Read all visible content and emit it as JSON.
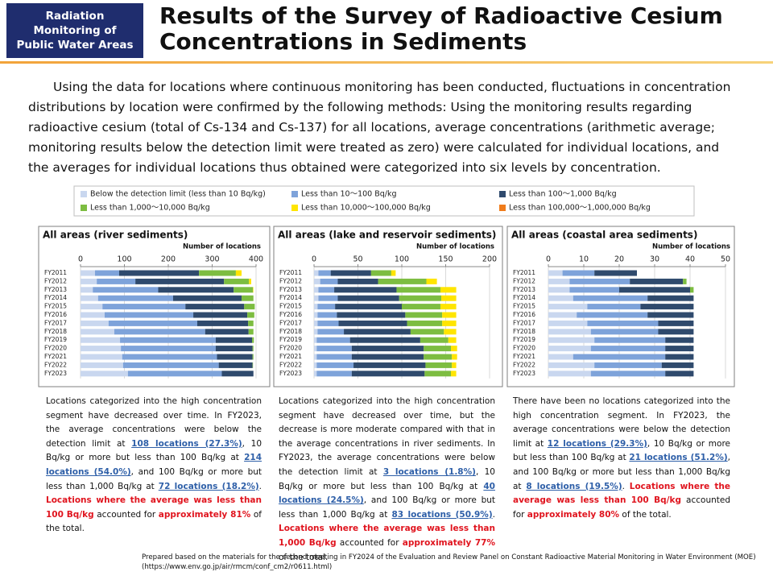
{
  "header": {
    "section_lines": [
      "Radiation",
      "Monitoring of",
      "Public Water Areas"
    ],
    "title_lines": [
      "Results of the Survey of Radioactive Cesium",
      "Concentrations in Sediments"
    ]
  },
  "intro": "Using the data for locations where continuous monitoring has been conducted, fluctuations in concentration distributions by location were confirmed by the following methods: Using the monitoring results regarding radioactive cesium (total of Cs-134 and Cs-137) for all locations, average concentrations (arithmetic average; monitoring results below the detection limit were treated as zero) were calculated for individual locations, and the averages for individual locations thus obtained were categorized into six levels by concentration.",
  "chart_data": [
    {
      "type": "bar",
      "title": "All areas (river sediments)",
      "x_label": "Number of locations",
      "categories": [
        "FY2011",
        "FY2012",
        "FY2013",
        "FY2014",
        "FY2015",
        "FY2016",
        "FY2017",
        "FY2018",
        "FY2019",
        "FY2020",
        "FY2021",
        "FY2022",
        "FY2023"
      ],
      "xlim": [
        0,
        400
      ],
      "xticks": [
        0,
        100,
        200,
        300,
        400
      ],
      "grid": true,
      "series": [
        {
          "name": "Below the detection limit (less than 10 Bq/kg)",
          "color": "#c9d7ef",
          "values": [
            33,
            37,
            28,
            40,
            50,
            55,
            64,
            77,
            90,
            92,
            95,
            97,
            108
          ]
        },
        {
          "name": "Less than 10～100 Bq/kg",
          "color": "#7ea3da",
          "values": [
            55,
            88,
            149,
            171,
            189,
            202,
            202,
            207,
            218,
            216,
            216,
            218,
            214
          ]
        },
        {
          "name": "Less than 100～1,000 Bq/kg",
          "color": "#2f4a6d",
          "values": [
            182,
            202,
            172,
            156,
            134,
            123,
            116,
            99,
            83,
            84,
            81,
            77,
            72
          ]
        },
        {
          "name": "Less than 1,000～10,000 Bq/kg",
          "color": "#7dbd41",
          "values": [
            84,
            57,
            44,
            27,
            24,
            16,
            12,
            11,
            4,
            2,
            2,
            1,
            0
          ]
        },
        {
          "name": "Less than 10,000～100,000 Bq/kg",
          "color": "#ffe500",
          "values": [
            13,
            5,
            1,
            0,
            0,
            0,
            0,
            0,
            0,
            0,
            0,
            0,
            0
          ]
        },
        {
          "name": "Less than 100,000～1,000,000 Bq/kg",
          "color": "#f07c1b",
          "values": [
            0,
            0,
            0,
            0,
            0,
            0,
            0,
            0,
            0,
            0,
            0,
            0,
            0
          ]
        }
      ]
    },
    {
      "type": "bar",
      "title": "All areas (lake and reservoir sediments)",
      "x_label": "Number of locations",
      "categories": [
        "FY2011",
        "FY2012",
        "FY2013",
        "FY2014",
        "FY2015",
        "FY2016",
        "FY2017",
        "FY2018",
        "FY2019",
        "FY2020",
        "FY2021",
        "FY2022",
        "FY2023"
      ],
      "xlim": [
        0,
        200
      ],
      "xticks": [
        0,
        50,
        100,
        150,
        200
      ],
      "grid": true,
      "series": [
        {
          "values": [
            5,
            7,
            5,
            5,
            4,
            4,
            4,
            4,
            3,
            3,
            3,
            3,
            3
          ]
        },
        {
          "values": [
            14,
            20,
            18,
            22,
            20,
            22,
            24,
            30,
            38,
            40,
            40,
            42,
            40
          ]
        },
        {
          "values": [
            46,
            46,
            71,
            70,
            76,
            78,
            78,
            76,
            80,
            82,
            82,
            82,
            83
          ]
        },
        {
          "values": [
            23,
            55,
            50,
            48,
            44,
            42,
            40,
            38,
            32,
            31,
            32,
            30,
            30
          ]
        },
        {
          "values": [
            5,
            12,
            18,
            17,
            18,
            16,
            16,
            14,
            9,
            7,
            6,
            5,
            6
          ]
        },
        {
          "values": [
            0,
            0,
            0,
            0,
            0,
            0,
            0,
            0,
            0,
            0,
            0,
            0,
            0
          ]
        }
      ]
    },
    {
      "type": "bar",
      "title": "All areas (coastal area sediments)",
      "x_label": "Number of locations",
      "categories": [
        "FY2011",
        "FY2012",
        "FY2013",
        "FY2014",
        "FY2015",
        "FY2016",
        "FY2017",
        "FY2018",
        "FY2019",
        "FY2020",
        "FY2021",
        "FY2022",
        "FY2023"
      ],
      "xlim": [
        0,
        50
      ],
      "xticks": [
        0,
        10,
        20,
        30,
        40,
        50
      ],
      "grid": true,
      "series": [
        {
          "values": [
            4,
            6,
            6,
            7,
            11,
            8,
            11,
            12,
            13,
            12,
            7,
            13,
            12
          ]
        },
        {
          "values": [
            9,
            17,
            14,
            21,
            15,
            20,
            20,
            19,
            20,
            21,
            26,
            19,
            21
          ]
        },
        {
          "values": [
            12,
            15,
            20,
            13,
            15,
            13,
            10,
            10,
            8,
            8,
            8,
            9,
            8
          ]
        },
        {
          "values": [
            0,
            1,
            1,
            0,
            0,
            0,
            0,
            0,
            0,
            0,
            0,
            0,
            0
          ]
        },
        {
          "values": [
            0,
            0,
            0,
            0,
            0,
            0,
            0,
            0,
            0,
            0,
            0,
            0,
            0
          ]
        },
        {
          "values": [
            0,
            0,
            0,
            0,
            0,
            0,
            0,
            0,
            0,
            0,
            0,
            0,
            0
          ]
        }
      ]
    }
  ],
  "captions": [
    [
      {
        "text": "Locations categorized into the high concentration segment have decreased over time. In FY2023, the average concentrations were below the detection limit at "
      },
      {
        "text": "108 locations (27.3%)",
        "style": "link"
      },
      {
        "text": ", 10 Bq/kg or more but less than 100 Bq/kg at "
      },
      {
        "text": "214 locations (54.0%)",
        "style": "link"
      },
      {
        "text": ", and 100 Bq/kg or more but less than 1,000 Bq/kg at "
      },
      {
        "text": "72 locations (18.2%)",
        "style": "link"
      },
      {
        "text": ". "
      },
      {
        "text": "Locations where the average was less than 100 Bq/kg",
        "style": "red"
      },
      {
        "text": " accounted for "
      },
      {
        "text": "approximately 81%",
        "style": "red"
      },
      {
        "text": " of the total."
      }
    ],
    [
      {
        "text": "Locations categorized into the high concentration segment have decreased over time, but the decrease is more moderate compared with that in the average concentrations in river sediments. In FY2023, the average concentrations were below the detection limit at "
      },
      {
        "text": "3 locations (1.8%)",
        "style": "link"
      },
      {
        "text": ", 10 Bq/kg or more but less than 100 Bq/kg at "
      },
      {
        "text": "40 locations (24.5%)",
        "style": "link"
      },
      {
        "text": ", and 100 Bq/kg or more but less than 1,000 Bq/kg at "
      },
      {
        "text": "83 locations (50.9%)",
        "style": "link"
      },
      {
        "text": ". "
      },
      {
        "text": "Locations where the average was less than 1,000 Bq/kg",
        "style": "red"
      },
      {
        "text": " accounted for "
      },
      {
        "text": "approximately 77%",
        "style": "red"
      },
      {
        "text": " of the total."
      }
    ],
    [
      {
        "text": "There have been no locations categorized into the high concentration segment. In FY2023, the average concentrations were below the detection limit at "
      },
      {
        "text": "12 locations (29.3%)",
        "style": "link"
      },
      {
        "text": ", 10 Bq/kg or more but less than 100 Bq/kg at "
      },
      {
        "text": "21 locations (51.2%)",
        "style": "link"
      },
      {
        "text": ", and 100 Bq/kg or more but less than 1,000 Bq/kg at "
      },
      {
        "text": "8 locations (19.5%)",
        "style": "link"
      },
      {
        "text": ". "
      },
      {
        "text": "Locations where the average was less than 100 Bq/kg",
        "style": "red"
      },
      {
        "text": " accounted for "
      },
      {
        "text": "approximately 80%",
        "style": "red"
      },
      {
        "text": " of the total."
      }
    ]
  ],
  "footer": [
    "Prepared based on the materials for the second meeting in FY2024 of the Evaluation and Review Panel on Constant Radioactive Material Monitoring in Water Environment (MOE)",
    "(https://www.env.go.jp/air/rmcm/conf_cm2/r0611.html)"
  ]
}
